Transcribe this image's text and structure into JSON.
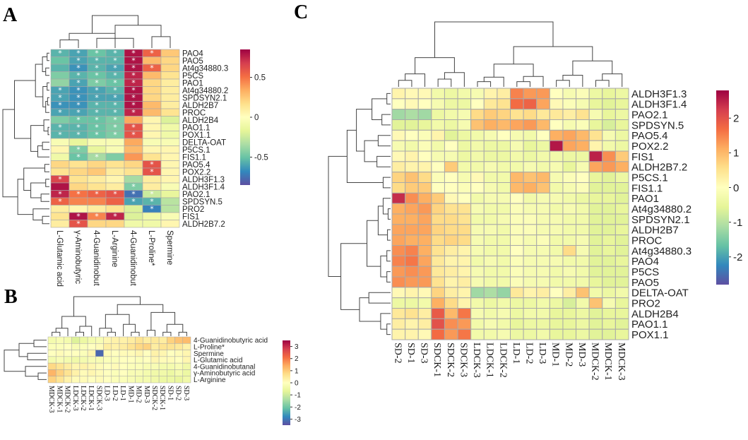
{
  "panels": {
    "A": {
      "letter": "A",
      "rows": [
        "PAO4",
        "PAO5",
        "At4g34880.3",
        "P5CS",
        "PAO1",
        "At4g34880.2",
        "SPDSYN2.1",
        "ALDH2B7",
        "PROC",
        "ALDH2B4",
        "PAO1.1",
        "POX1.1",
        "DELTA-OAT",
        "P5CS.1",
        "FIS1.1",
        "PAO5.4",
        "POX2.2",
        "ALDH3F1.3",
        "ALDH3F1.4",
        "PAO2.1",
        "SPDSYN.5",
        "PRO2",
        "FIS1",
        "ALDH2B7.2"
      ],
      "columns": [
        "L-Glutamic acid",
        "γ-Aminobutyric",
        "4-Guanidinobut",
        "L-Arginine",
        "4-Guanidinobut",
        "L-Proline*",
        "Spermine"
      ],
      "legend": {
        "ticks": [
          "0.5",
          "0",
          "-0.5"
        ],
        "tick_values": [
          0.5,
          0,
          -0.5
        ],
        "min": -0.85,
        "max": 0.85
      },
      "values": [
        [
          -0.55,
          -0.6,
          -0.5,
          -0.55,
          0.8,
          0.55,
          0.25
        ],
        [
          -0.5,
          -0.6,
          -0.55,
          -0.55,
          0.8,
          0.3,
          0.2
        ],
        [
          -0.55,
          -0.65,
          -0.55,
          -0.6,
          0.8,
          0.55,
          0.2
        ],
        [
          -0.45,
          -0.55,
          -0.5,
          -0.55,
          0.75,
          0.3,
          0.15
        ],
        [
          -0.4,
          -0.6,
          -0.45,
          -0.5,
          0.75,
          0.2,
          0.1
        ],
        [
          -0.6,
          -0.65,
          -0.6,
          -0.55,
          0.8,
          0.2,
          0.1
        ],
        [
          -0.6,
          -0.65,
          -0.6,
          -0.6,
          0.8,
          0.2,
          0.1
        ],
        [
          -0.65,
          -0.65,
          -0.55,
          -0.55,
          0.8,
          0.3,
          0.1
        ],
        [
          -0.6,
          -0.6,
          -0.55,
          -0.55,
          0.75,
          0.3,
          0.15
        ],
        [
          -0.45,
          -0.5,
          -0.5,
          -0.45,
          0.35,
          0.05,
          -0.2
        ],
        [
          -0.55,
          -0.55,
          -0.5,
          -0.45,
          0.6,
          0.05,
          -0.1
        ],
        [
          -0.55,
          -0.55,
          -0.5,
          -0.45,
          0.6,
          0.05,
          -0.1
        ],
        [
          -0.05,
          -0.15,
          -0.05,
          -0.05,
          0.35,
          -0.05,
          -0.05
        ],
        [
          0.05,
          -0.45,
          -0.15,
          -0.05,
          0.3,
          0.05,
          0.05
        ],
        [
          -0.1,
          -0.5,
          -0.35,
          -0.45,
          0.4,
          0.15,
          0.05
        ],
        [
          0.2,
          0.15,
          0.2,
          0.15,
          0.2,
          0.6,
          0.05
        ],
        [
          0.15,
          0.2,
          0.25,
          0.1,
          0.15,
          0.6,
          0.05
        ],
        [
          0.65,
          0.15,
          0.1,
          0.05,
          -0.35,
          0.1,
          0.05
        ],
        [
          0.8,
          0.2,
          0.15,
          0.1,
          -0.45,
          0.1,
          -0.05
        ],
        [
          0.75,
          0.5,
          0.55,
          0.6,
          -0.75,
          -0.25,
          -0.15
        ],
        [
          0.55,
          0.45,
          0.45,
          0.55,
          -0.6,
          -0.55,
          -0.3
        ],
        [
          0.1,
          0.05,
          0.1,
          0.15,
          -0.2,
          -0.7,
          -0.3
        ],
        [
          0.15,
          0.8,
          0.45,
          0.75,
          -0.2,
          -0.1,
          -0.05
        ],
        [
          0.1,
          0.6,
          0.2,
          0.2,
          -0.1,
          -0.1,
          0.05
        ]
      ],
      "stars": [
        [
          1,
          1,
          1,
          1,
          1,
          1,
          0
        ],
        [
          0,
          1,
          1,
          1,
          1,
          0,
          0
        ],
        [
          0,
          1,
          1,
          1,
          1,
          1,
          0
        ],
        [
          0,
          1,
          1,
          1,
          1,
          0,
          0
        ],
        [
          0,
          1,
          1,
          1,
          1,
          0,
          0
        ],
        [
          1,
          1,
          1,
          1,
          1,
          0,
          0
        ],
        [
          1,
          1,
          1,
          1,
          1,
          0,
          0
        ],
        [
          1,
          1,
          1,
          1,
          1,
          0,
          0
        ],
        [
          1,
          1,
          1,
          1,
          1,
          0,
          0
        ],
        [
          0,
          1,
          1,
          1,
          0,
          0,
          0
        ],
        [
          1,
          1,
          1,
          1,
          1,
          0,
          0
        ],
        [
          1,
          1,
          1,
          1,
          1,
          0,
          0
        ],
        [
          0,
          0,
          0,
          0,
          0,
          0,
          0
        ],
        [
          0,
          1,
          0,
          0,
          0,
          0,
          0
        ],
        [
          0,
          1,
          1,
          0,
          0,
          0,
          0
        ],
        [
          0,
          0,
          0,
          0,
          0,
          1,
          0
        ],
        [
          0,
          0,
          0,
          0,
          0,
          1,
          0
        ],
        [
          1,
          0,
          0,
          0,
          0,
          0,
          0
        ],
        [
          0,
          0,
          0,
          0,
          1,
          0,
          0
        ],
        [
          1,
          1,
          1,
          1,
          1,
          1,
          0
        ],
        [
          1,
          0,
          0,
          0,
          1,
          1,
          0
        ],
        [
          0,
          0,
          0,
          0,
          0,
          1,
          0
        ],
        [
          0,
          1,
          1,
          1,
          0,
          0,
          0
        ],
        [
          0,
          1,
          0,
          0,
          0,
          0,
          0
        ]
      ]
    },
    "B": {
      "letter": "B",
      "rows": [
        "4-Guanidinobutyric acid",
        "L-Proline*",
        "Spermine",
        "L-Glutamic acid",
        "4-Guanidinobutanal",
        "γ-Aminobutyric acid",
        "L-Arginine"
      ],
      "columns": [
        "MDCK-3",
        "MDCK-1",
        "MDCK-2",
        "LDCK-3",
        "LDCK-2",
        "LDCK-1",
        "SDCK-3",
        "LD-3",
        "LD-2",
        "LD-1",
        "MD-1",
        "MD-2",
        "MD-3",
        "SDCK-2",
        "SDCK-1",
        "SD-1",
        "SD-2",
        "SD-3"
      ],
      "legend": {
        "ticks": [
          "3",
          "2",
          "1",
          "0",
          "-1",
          "-2",
          "-3"
        ],
        "tick_values": [
          3,
          2,
          1,
          0,
          -1,
          -2,
          -3
        ],
        "min": -3.5,
        "max": 3.5
      },
      "values": [
        [
          -0.3,
          -0.2,
          -0.3,
          -0.8,
          -0.5,
          -0.3,
          -0.2,
          0.2,
          0.3,
          0.3,
          0.4,
          0.6,
          0.4,
          0.5,
          0.4,
          0.9,
          1.1,
          1.2
        ],
        [
          -0.1,
          -0.1,
          0.0,
          -0.2,
          -0.1,
          0.0,
          0.1,
          0.4,
          0.3,
          0.4,
          0.6,
          0.8,
          0.9,
          0.4,
          0.6,
          0.6,
          0.5,
          0.3
        ],
        [
          0.0,
          0.1,
          0.0,
          0.0,
          -0.1,
          0.2,
          -3.2,
          0.1,
          0.0,
          0.1,
          0.1,
          0.2,
          0.0,
          0.3,
          0.2,
          0.0,
          0.1,
          0.2
        ],
        [
          -0.3,
          -0.2,
          -0.3,
          -0.4,
          -0.3,
          -0.2,
          -0.2,
          -0.1,
          -0.1,
          0.0,
          0.0,
          -0.1,
          0.0,
          0.2,
          0.1,
          0.1,
          0.0,
          0.2
        ],
        [
          0.8,
          0.6,
          0.4,
          0.2,
          0.3,
          0.2,
          0.1,
          0.0,
          0.1,
          0.0,
          -0.1,
          -0.1,
          -0.2,
          -0.2,
          -0.3,
          -0.3,
          -0.2,
          -0.4
        ],
        [
          1.3,
          0.9,
          0.6,
          0.3,
          0.1,
          0.2,
          0.1,
          0.0,
          -0.1,
          0.0,
          -0.2,
          -0.2,
          -0.3,
          -0.4,
          -0.4,
          -0.5,
          -0.3,
          -0.5
        ],
        [
          0.9,
          0.6,
          0.3,
          0.1,
          0.1,
          0.0,
          0.1,
          0.0,
          -0.1,
          -0.1,
          -0.2,
          -0.3,
          -0.3,
          -0.4,
          -0.5,
          -0.5,
          -0.6,
          -0.4
        ]
      ]
    },
    "C": {
      "letter": "C",
      "rows": [
        "ALDH3F1.3",
        "ALDH3F1.4",
        "PAO2.1",
        "SPDSYN.5",
        "PAO5.4",
        "POX2.2",
        "FIS1",
        "ALDH2B7.2",
        "P5CS.1",
        "FIS1.1",
        "PAO1",
        "At4g34880.2",
        "SPDSYN2.1",
        "ALDH2B7",
        "PROC",
        "At4g34880.3",
        "PAO4",
        "P5CS",
        "PAO5",
        "DELTA-OAT",
        "PRO2",
        "ALDH2B4",
        "PAO1.1",
        "POX1.1"
      ],
      "columns": [
        "SD-2",
        "SD-1",
        "SD-3",
        "SDCK-1",
        "SDCK-2",
        "SDCK-3",
        "LDCK-3",
        "LDCK-1",
        "LDCK-2",
        "LD-1",
        "LD-2",
        "LD-3",
        "MD-1",
        "MD-2",
        "MD-3",
        "MDCK-2",
        "MDCK-1",
        "MDCK-3"
      ],
      "legend": {
        "ticks": [
          "2",
          "1",
          "0",
          "-1",
          "-2"
        ],
        "tick_values": [
          2,
          1,
          0,
          -1,
          -2
        ],
        "min": -2.8,
        "max": 2.8
      },
      "values": [
        [
          0.2,
          0.1,
          0.1,
          -0.3,
          -0.4,
          -0.3,
          -0.2,
          0.2,
          0.3,
          1.5,
          1.3,
          1.3,
          0.0,
          -0.2,
          -0.1,
          -0.4,
          -0.5,
          -0.4
        ],
        [
          0.0,
          0.1,
          0.0,
          -0.2,
          -0.4,
          -0.4,
          0.0,
          0.4,
          0.5,
          1.7,
          1.8,
          1.2,
          0.1,
          -0.1,
          -0.2,
          -0.5,
          -0.6,
          -0.5
        ],
        [
          -1.2,
          -1.1,
          -1.2,
          -0.4,
          -0.3,
          -0.2,
          0.6,
          0.8,
          0.7,
          0.5,
          0.6,
          0.4,
          0.4,
          0.3,
          0.5,
          -0.2,
          -0.5,
          -0.4
        ],
        [
          -0.6,
          -0.6,
          -0.5,
          -0.3,
          -0.4,
          -0.2,
          0.9,
          1.1,
          1.0,
          1.2,
          1.3,
          1.0,
          0.0,
          -0.2,
          -0.1,
          -0.5,
          -0.7,
          -0.5
        ],
        [
          0.1,
          0.0,
          -0.1,
          0.2,
          -0.6,
          -0.4,
          -0.3,
          -0.2,
          0.0,
          -0.2,
          -0.3,
          0.0,
          1.1,
          1.2,
          1.0,
          0.5,
          -0.2,
          -0.4
        ],
        [
          -0.2,
          -0.3,
          -0.1,
          -0.3,
          0.0,
          -0.4,
          -0.3,
          -0.4,
          -0.4,
          -0.2,
          -0.5,
          -0.4,
          2.6,
          1.2,
          1.1,
          0.2,
          -0.3,
          -0.4
        ],
        [
          0.1,
          0.2,
          0.0,
          -0.2,
          -0.2,
          -0.4,
          -0.3,
          -0.4,
          -0.4,
          -0.3,
          -0.4,
          -0.3,
          -0.3,
          -0.4,
          -0.4,
          2.5,
          1.4,
          0.8
        ],
        [
          0.3,
          0.2,
          0.2,
          0.0,
          0.8,
          -0.3,
          -0.3,
          -0.2,
          -0.3,
          -0.3,
          -0.2,
          -0.3,
          -0.2,
          -0.5,
          -0.2,
          1.2,
          1.3,
          1.1
        ],
        [
          0.7,
          0.9,
          0.6,
          -0.1,
          0.0,
          -0.2,
          0.1,
          -0.3,
          -0.3,
          1.0,
          0.9,
          1.0,
          -0.2,
          -0.1,
          0.0,
          -0.5,
          -0.6,
          -0.4
        ],
        [
          0.6,
          0.8,
          0.8,
          0.0,
          0.0,
          -0.1,
          0.0,
          -0.2,
          -0.3,
          1.0,
          1.1,
          0.9,
          -0.3,
          -0.2,
          -0.1,
          -0.6,
          -0.6,
          -0.6
        ],
        [
          2.4,
          1.4,
          1.1,
          0.8,
          0.1,
          0.0,
          -0.3,
          -0.2,
          -0.2,
          0.0,
          -0.3,
          -0.2,
          -0.2,
          -0.3,
          -0.4,
          -0.5,
          -0.5,
          -0.6
        ],
        [
          1.1,
          1.2,
          1.3,
          0.7,
          0.5,
          0.5,
          -0.2,
          -0.3,
          -0.3,
          -0.1,
          -0.2,
          -0.2,
          -0.3,
          -0.2,
          -0.3,
          -0.6,
          -0.6,
          -0.5
        ],
        [
          1.1,
          1.1,
          1.2,
          0.6,
          0.6,
          0.5,
          -0.3,
          -0.3,
          -0.2,
          -0.1,
          -0.1,
          -0.2,
          -0.2,
          -0.3,
          -0.3,
          -0.6,
          -0.6,
          -0.6
        ],
        [
          1.2,
          1.2,
          1.2,
          0.7,
          0.6,
          0.6,
          -0.2,
          -0.2,
          -0.3,
          -0.1,
          -0.1,
          -0.2,
          -0.2,
          -0.3,
          -0.3,
          -0.6,
          -0.6,
          -0.5
        ],
        [
          1.2,
          1.1,
          1.1,
          0.6,
          0.7,
          0.6,
          -0.2,
          -0.3,
          -0.3,
          -0.1,
          -0.2,
          -0.1,
          -0.3,
          -0.3,
          -0.2,
          -0.6,
          -0.5,
          -0.6
        ],
        [
          1.4,
          1.5,
          1.1,
          0.5,
          0.3,
          0.2,
          -0.2,
          -0.3,
          -0.3,
          0.0,
          -0.2,
          -0.2,
          -0.3,
          0.6,
          -0.2,
          -0.6,
          -0.5,
          -0.6
        ],
        [
          1.5,
          1.6,
          1.2,
          0.4,
          0.2,
          0.2,
          -0.3,
          -0.2,
          -0.3,
          -0.1,
          -0.2,
          -0.2,
          -0.2,
          -0.3,
          -0.3,
          -0.6,
          -0.6,
          -0.5
        ],
        [
          1.3,
          1.4,
          1.3,
          0.4,
          0.3,
          0.2,
          -0.2,
          -0.3,
          -0.3,
          -0.1,
          -0.2,
          -0.2,
          -0.3,
          -0.2,
          -0.3,
          -0.6,
          -0.6,
          -0.6
        ],
        [
          1.4,
          1.3,
          1.3,
          0.5,
          0.2,
          0.3,
          -0.2,
          -0.3,
          -0.3,
          -0.1,
          -0.2,
          -0.2,
          -0.3,
          -0.3,
          -0.3,
          -0.5,
          -0.6,
          -0.6
        ],
        [
          0.1,
          0.2,
          0.1,
          0.7,
          0.3,
          0.2,
          -1.2,
          -1.1,
          -1.3,
          0.4,
          0.2,
          0.3,
          0.0,
          0.3,
          0.9,
          -0.3,
          -0.4,
          -0.3
        ],
        [
          -0.4,
          -0.4,
          -0.3,
          1.1,
          0.6,
          0.2,
          -0.3,
          -0.4,
          -0.3,
          -0.4,
          -0.4,
          -0.3,
          -0.4,
          -0.7,
          -0.3,
          0.9,
          -0.2,
          -0.5
        ],
        [
          0.4,
          0.5,
          0.3,
          1.9,
          1.0,
          1.6,
          -0.2,
          -0.3,
          -0.2,
          -0.4,
          -0.3,
          -0.3,
          -0.5,
          -0.5,
          -0.4,
          -0.6,
          -0.5,
          -0.5
        ],
        [
          0.3,
          0.2,
          0.3,
          2.0,
          1.4,
          1.3,
          -0.3,
          -0.2,
          -0.3,
          -0.5,
          -0.4,
          -0.4,
          -0.5,
          -0.5,
          -0.4,
          -0.6,
          -0.5,
          -0.6
        ],
        [
          0.2,
          0.2,
          0.1,
          1.7,
          1.3,
          1.6,
          -0.3,
          -0.3,
          -0.2,
          -0.4,
          -0.4,
          -0.3,
          -0.5,
          -0.5,
          -0.4,
          -0.6,
          -0.6,
          -0.5
        ]
      ]
    }
  },
  "palette": [
    "#5e4fa2",
    "#3288bd",
    "#66c2a5",
    "#abdda4",
    "#e6f598",
    "#ffffbf",
    "#fee08b",
    "#fdae61",
    "#f46d43",
    "#d53e4f",
    "#9e0142"
  ],
  "star_symbol": "*",
  "chart_data": [
    {
      "type": "heatmap",
      "title": "A",
      "rows": "panels.A.rows",
      "columns": "panels.A.columns",
      "legend_ticks": [
        "0.5",
        "0",
        "-0.5"
      ]
    },
    {
      "type": "heatmap",
      "title": "B",
      "rows": "panels.B.rows",
      "columns": "panels.B.columns",
      "legend_ticks": [
        "3",
        "2",
        "1",
        "0",
        "-1",
        "-2",
        "-3"
      ]
    },
    {
      "type": "heatmap",
      "title": "C",
      "rows": "panels.C.rows",
      "columns": "panels.C.columns",
      "legend_ticks": [
        "2",
        "1",
        "0",
        "-1",
        "-2"
      ]
    }
  ]
}
